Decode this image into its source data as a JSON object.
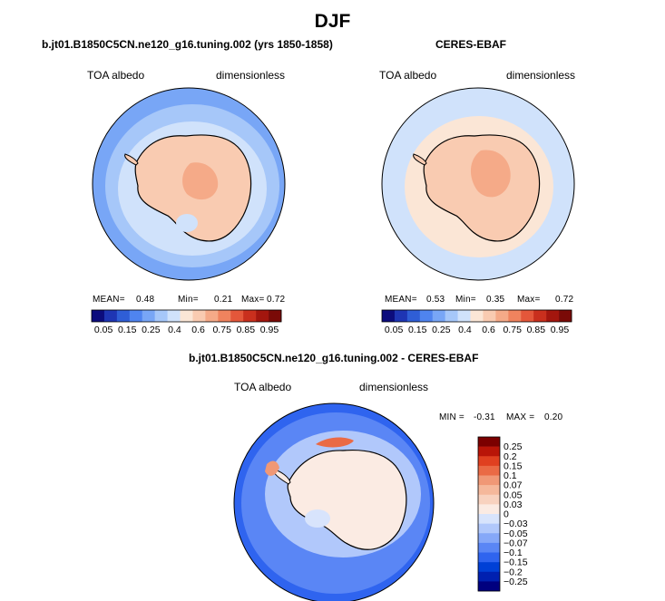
{
  "page_title": "DJF",
  "panels": [
    {
      "title": "b.jt01.B1850C5CN.ne120_g16.tuning.002 (yrs 1850-1858)",
      "left_label": "TOA albedo",
      "right_label": "dimensionless",
      "stats": {
        "mean_label": "MEAN=",
        "mean": "0.48",
        "min_label": "Min=",
        "min": "0.21",
        "max_label": "Max=",
        "max": "0.72"
      }
    },
    {
      "title": "CERES-EBAF",
      "left_label": "TOA albedo",
      "right_label": "dimensionless",
      "stats": {
        "mean_label": "MEAN=",
        "mean": "0.53",
        "min_label": "Min=",
        "min": "0.35",
        "max_label": "Max=",
        "max": "0.72"
      }
    },
    {
      "title": "b.jt01.B1850C5CN.ne120_g16.tuning.002 - CERES-EBAF",
      "left_label": "TOA albedo",
      "right_label": "dimensionless",
      "stats": {
        "min_label": "MIN =",
        "min": "-0.31",
        "max_label": "MAX =",
        "max": "0.20"
      }
    }
  ],
  "colors": {
    "albedo_scale": [
      "#0c0c7d",
      "#1e35b4",
      "#2f5ed6",
      "#4f84ef",
      "#78a6f6",
      "#a6c7f9",
      "#d0e2fb",
      "#fbe6d6",
      "#f9cbb1",
      "#f5aa88",
      "#ef835e",
      "#e4573a",
      "#c92f1d",
      "#a3160e",
      "#7a0a07"
    ],
    "diff_scale": [
      "#00007f",
      "#0020b0",
      "#0040d6",
      "#2f64ef",
      "#5a86f5",
      "#86a8f8",
      "#b1c8fb",
      "#d8e4fc",
      "#fbebe3",
      "#f8d2bf",
      "#f5b89b",
      "#f09876",
      "#ea6a45",
      "#e04020",
      "#b91508",
      "#7b0000"
    ]
  },
  "chart_data": [
    {
      "type": "heatmap",
      "subtype": "polar-stereographic-map",
      "region": "Antarctica / Southern Ocean",
      "title": "b.jt01.B1850C5CN.ne120_g16.tuning.002 (yrs 1850-1858)",
      "variable": "TOA albedo",
      "units": "dimensionless",
      "mean": 0.48,
      "min": 0.21,
      "max": 0.72,
      "colorbar_levels": [
        0.05,
        0.15,
        0.25,
        0.4,
        0.6,
        0.75,
        0.85,
        0.95
      ],
      "colorbar_tick_labels": [
        "0.05",
        "0.15",
        "0.25",
        "0.4",
        "0.6",
        "0.75",
        "0.85",
        "0.95"
      ],
      "colorbar_orientation": "horizontal"
    },
    {
      "type": "heatmap",
      "subtype": "polar-stereographic-map",
      "region": "Antarctica / Southern Ocean",
      "title": "CERES-EBAF",
      "variable": "TOA albedo",
      "units": "dimensionless",
      "mean": 0.53,
      "min": 0.35,
      "max": 0.72,
      "colorbar_levels": [
        0.05,
        0.15,
        0.25,
        0.4,
        0.6,
        0.75,
        0.85,
        0.95
      ],
      "colorbar_tick_labels": [
        "0.05",
        "0.15",
        "0.25",
        "0.4",
        "0.6",
        "0.75",
        "0.85",
        "0.95"
      ],
      "colorbar_orientation": "horizontal"
    },
    {
      "type": "heatmap",
      "subtype": "polar-stereographic-map",
      "region": "Antarctica / Southern Ocean",
      "title": "b.jt01.B1850C5CN.ne120_g16.tuning.002 - CERES-EBAF",
      "variable": "TOA albedo",
      "units": "dimensionless",
      "min": -0.31,
      "max": 0.2,
      "colorbar_levels": [
        -0.25,
        -0.2,
        -0.15,
        -0.1,
        -0.07,
        -0.05,
        -0.03,
        0,
        0.03,
        0.05,
        0.07,
        0.1,
        0.15,
        0.2,
        0.25
      ],
      "colorbar_tick_labels": [
        "0.25",
        "0.2",
        "0.15",
        "0.1",
        "0.07",
        "0.05",
        "0.03",
        "0",
        "−0.03",
        "−0.05",
        "−0.07",
        "−0.1",
        "−0.15",
        "−0.2",
        "−0.25"
      ],
      "colorbar_orientation": "vertical"
    }
  ]
}
